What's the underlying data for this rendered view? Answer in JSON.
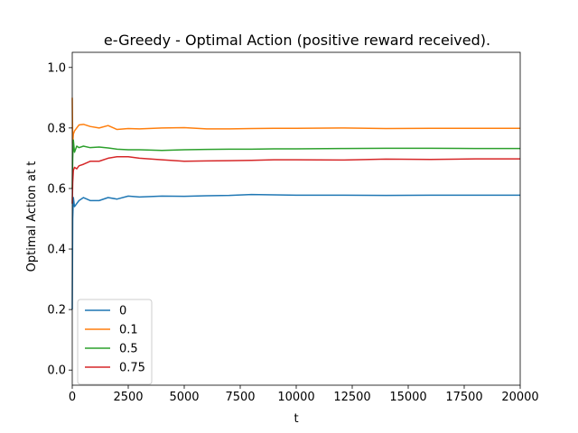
{
  "chart_data": {
    "type": "line",
    "title": "e-Greedy - Optimal Action (positive reward received).",
    "xlabel": "t",
    "ylabel": "Optimal Action at t",
    "xlim": [
      0,
      20000
    ],
    "ylim": [
      -0.05,
      1.05
    ],
    "xticks": [
      0,
      2500,
      5000,
      7500,
      10000,
      12500,
      15000,
      17500,
      20000
    ],
    "yticks": [
      0.0,
      0.2,
      0.4,
      0.6,
      0.8,
      1.0
    ],
    "xtick_labels": [
      "0",
      "2500",
      "5000",
      "7500",
      "10000",
      "12500",
      "15000",
      "17500",
      "20000"
    ],
    "ytick_labels": [
      "0.0",
      "0.2",
      "0.4",
      "0.6",
      "0.8",
      "1.0"
    ],
    "grid": false,
    "legend_position": "lower-left",
    "series": [
      {
        "name": "0",
        "color": "#1f77b4",
        "x": [
          0,
          20,
          50,
          100,
          200,
          300,
          500,
          800,
          1200,
          1600,
          2000,
          2500,
          3000,
          4000,
          5000,
          6000,
          7000,
          8000,
          9000,
          10000,
          12000,
          14000,
          16000,
          18000,
          20000
        ],
        "y": [
          0.2,
          0.5,
          0.57,
          0.54,
          0.55,
          0.56,
          0.57,
          0.56,
          0.56,
          0.57,
          0.565,
          0.575,
          0.572,
          0.575,
          0.574,
          0.576,
          0.577,
          0.58,
          0.579,
          0.578,
          0.578,
          0.577,
          0.578,
          0.578,
          0.578
        ]
      },
      {
        "name": "0.1",
        "color": "#ff7f0e",
        "x": [
          0,
          20,
          50,
          100,
          200,
          300,
          500,
          800,
          1200,
          1600,
          2000,
          2500,
          3000,
          4000,
          5000,
          6000,
          7000,
          8000,
          9000,
          10000,
          12000,
          14000,
          16000,
          18000,
          20000
        ],
        "y": [
          0.9,
          0.75,
          0.78,
          0.79,
          0.8,
          0.81,
          0.812,
          0.805,
          0.8,
          0.808,
          0.795,
          0.798,
          0.797,
          0.8,
          0.801,
          0.797,
          0.797,
          0.798,
          0.799,
          0.799,
          0.8,
          0.798,
          0.799,
          0.799,
          0.799
        ]
      },
      {
        "name": "0.5",
        "color": "#2ca02c",
        "x": [
          0,
          20,
          50,
          100,
          200,
          300,
          500,
          800,
          1200,
          1600,
          2000,
          2500,
          3000,
          4000,
          5000,
          6000,
          7000,
          8000,
          9000,
          10000,
          12000,
          14000,
          16000,
          18000,
          20000
        ],
        "y": [
          0.6,
          0.7,
          0.76,
          0.72,
          0.74,
          0.735,
          0.74,
          0.735,
          0.737,
          0.734,
          0.73,
          0.728,
          0.728,
          0.726,
          0.728,
          0.729,
          0.73,
          0.73,
          0.731,
          0.731,
          0.732,
          0.733,
          0.733,
          0.732,
          0.732
        ]
      },
      {
        "name": "0.75",
        "color": "#d62728",
        "x": [
          0,
          20,
          50,
          100,
          200,
          300,
          500,
          800,
          1200,
          1600,
          2000,
          2500,
          3000,
          4000,
          5000,
          6000,
          7000,
          8000,
          9000,
          10000,
          12000,
          14000,
          16000,
          18000,
          20000
        ],
        "y": [
          0.55,
          0.62,
          0.66,
          0.67,
          0.665,
          0.675,
          0.68,
          0.69,
          0.69,
          0.7,
          0.705,
          0.705,
          0.7,
          0.695,
          0.69,
          0.691,
          0.692,
          0.693,
          0.695,
          0.695,
          0.694,
          0.697,
          0.696,
          0.698,
          0.698
        ]
      }
    ]
  }
}
